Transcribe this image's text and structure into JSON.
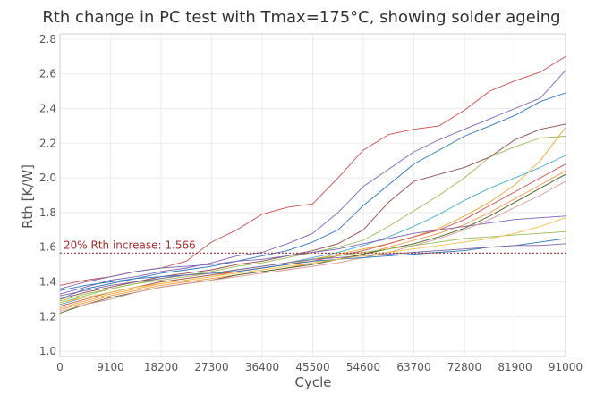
{
  "chart_data": {
    "type": "line",
    "title": "Rth change in PC test with Tmax=175°C, showing solder ageing",
    "xlabel": "Cycle",
    "ylabel": "Rth [K/W]",
    "xlim": [
      0,
      91000
    ],
    "ylim": [
      0.97,
      2.83
    ],
    "x_ticks": [
      0,
      9100,
      18200,
      27300,
      36400,
      45500,
      54600,
      63700,
      72800,
      81900,
      91000
    ],
    "y_ticks": [
      1.0,
      1.2,
      1.4,
      1.6,
      1.8,
      2.0,
      2.2,
      2.4,
      2.6,
      2.8
    ],
    "y_tick_labels": [
      "1.0",
      "1.2",
      "1.4",
      "1.6",
      "1.8",
      "2.0",
      "2.2",
      "2.4",
      "2.6",
      "2.8"
    ],
    "grid": true,
    "legend": "none",
    "reference_line": {
      "y": 1.566,
      "label": "20% Rth increase: 1.566",
      "color": "#a03030"
    },
    "x": [
      0,
      4550,
      9100,
      13650,
      18200,
      22750,
      27300,
      31850,
      36400,
      40950,
      45500,
      50050,
      54600,
      59150,
      63700,
      68250,
      72800,
      77350,
      81900,
      86450,
      91000
    ],
    "series": [
      {
        "color": "#c0504d",
        "values": [
          1.38,
          1.41,
          1.43,
          1.46,
          1.48,
          1.52,
          1.63,
          1.7,
          1.79,
          1.83,
          1.85,
          2.0,
          2.16,
          2.25,
          2.28,
          2.3,
          2.39,
          2.5,
          2.56,
          2.61,
          2.7
        ]
      },
      {
        "color": "#7f64b4",
        "values": [
          1.33,
          1.37,
          1.41,
          1.43,
          1.46,
          1.48,
          1.51,
          1.55,
          1.57,
          1.62,
          1.68,
          1.8,
          1.95,
          2.05,
          2.15,
          2.22,
          2.28,
          2.34,
          2.4,
          2.46,
          2.62
        ]
      },
      {
        "color": "#2e75b6",
        "values": [
          1.3,
          1.36,
          1.39,
          1.42,
          1.45,
          1.47,
          1.49,
          1.52,
          1.55,
          1.58,
          1.63,
          1.7,
          1.84,
          1.96,
          2.08,
          2.16,
          2.24,
          2.3,
          2.36,
          2.44,
          2.49
        ]
      },
      {
        "color": "#9bbb59",
        "values": [
          1.28,
          1.32,
          1.36,
          1.39,
          1.42,
          1.44,
          1.46,
          1.49,
          1.51,
          1.54,
          1.57,
          1.6,
          1.64,
          1.72,
          1.81,
          1.9,
          2.0,
          2.12,
          2.18,
          2.23,
          2.24
        ]
      },
      {
        "color": "#8b4a4a",
        "values": [
          1.3,
          1.34,
          1.37,
          1.4,
          1.43,
          1.45,
          1.47,
          1.5,
          1.52,
          1.55,
          1.58,
          1.62,
          1.7,
          1.86,
          1.98,
          2.02,
          2.06,
          2.12,
          2.22,
          2.28,
          2.31
        ]
      },
      {
        "color": "#e8a838",
        "values": [
          1.25,
          1.29,
          1.33,
          1.36,
          1.39,
          1.41,
          1.43,
          1.46,
          1.48,
          1.5,
          1.53,
          1.56,
          1.59,
          1.62,
          1.66,
          1.71,
          1.78,
          1.86,
          1.96,
          2.1,
          2.29
        ]
      },
      {
        "color": "#4bacc6",
        "values": [
          1.27,
          1.31,
          1.34,
          1.37,
          1.4,
          1.42,
          1.44,
          1.47,
          1.49,
          1.51,
          1.54,
          1.57,
          1.61,
          1.66,
          1.72,
          1.79,
          1.87,
          1.94,
          2.0,
          2.06,
          2.13
        ]
      },
      {
        "color": "#c0504d",
        "values": [
          1.26,
          1.3,
          1.34,
          1.37,
          1.4,
          1.42,
          1.44,
          1.46,
          1.48,
          1.5,
          1.52,
          1.55,
          1.58,
          1.62,
          1.66,
          1.7,
          1.76,
          1.84,
          1.92,
          2.0,
          2.08
        ]
      },
      {
        "color": "#f79646",
        "values": [
          1.24,
          1.28,
          1.32,
          1.35,
          1.38,
          1.4,
          1.42,
          1.44,
          1.46,
          1.48,
          1.51,
          1.53,
          1.56,
          1.6,
          1.64,
          1.68,
          1.73,
          1.8,
          1.88,
          1.96,
          2.04
        ]
      },
      {
        "color": "#7f64b4",
        "values": [
          1.36,
          1.4,
          1.43,
          1.46,
          1.48,
          1.49,
          1.5,
          1.52,
          1.53,
          1.55,
          1.57,
          1.59,
          1.62,
          1.65,
          1.68,
          1.7,
          1.72,
          1.74,
          1.76,
          1.77,
          1.78
        ]
      },
      {
        "color": "#4f6228",
        "values": [
          1.22,
          1.27,
          1.31,
          1.34,
          1.37,
          1.39,
          1.41,
          1.44,
          1.46,
          1.48,
          1.5,
          1.53,
          1.56,
          1.59,
          1.62,
          1.66,
          1.71,
          1.78,
          1.86,
          1.94,
          2.02
        ]
      },
      {
        "color": "#d99694",
        "values": [
          1.23,
          1.27,
          1.3,
          1.34,
          1.37,
          1.39,
          1.41,
          1.43,
          1.45,
          1.47,
          1.49,
          1.51,
          1.54,
          1.57,
          1.61,
          1.65,
          1.7,
          1.76,
          1.83,
          1.9,
          1.98
        ]
      },
      {
        "color": "#2e75b6",
        "values": [
          1.35,
          1.38,
          1.4,
          1.42,
          1.43,
          1.44,
          1.45,
          1.46,
          1.48,
          1.5,
          1.52,
          1.53,
          1.54,
          1.55,
          1.56,
          1.57,
          1.58,
          1.6,
          1.61,
          1.63,
          1.65
        ]
      },
      {
        "color": "#9bbb59",
        "values": [
          1.29,
          1.33,
          1.36,
          1.39,
          1.41,
          1.43,
          1.45,
          1.47,
          1.49,
          1.51,
          1.53,
          1.55,
          1.57,
          1.59,
          1.61,
          1.63,
          1.65,
          1.66,
          1.67,
          1.68,
          1.69
        ]
      },
      {
        "color": "#8064a2",
        "values": [
          1.32,
          1.35,
          1.38,
          1.4,
          1.42,
          1.44,
          1.45,
          1.47,
          1.49,
          1.51,
          1.53,
          1.54,
          1.55,
          1.56,
          1.57,
          1.58,
          1.59,
          1.6,
          1.61,
          1.61,
          1.62
        ]
      },
      {
        "color": "#f0c24d",
        "values": [
          1.28,
          1.31,
          1.34,
          1.37,
          1.39,
          1.41,
          1.43,
          1.45,
          1.47,
          1.49,
          1.51,
          1.53,
          1.55,
          1.57,
          1.59,
          1.61,
          1.63,
          1.65,
          1.68,
          1.72,
          1.77
        ]
      }
    ]
  }
}
